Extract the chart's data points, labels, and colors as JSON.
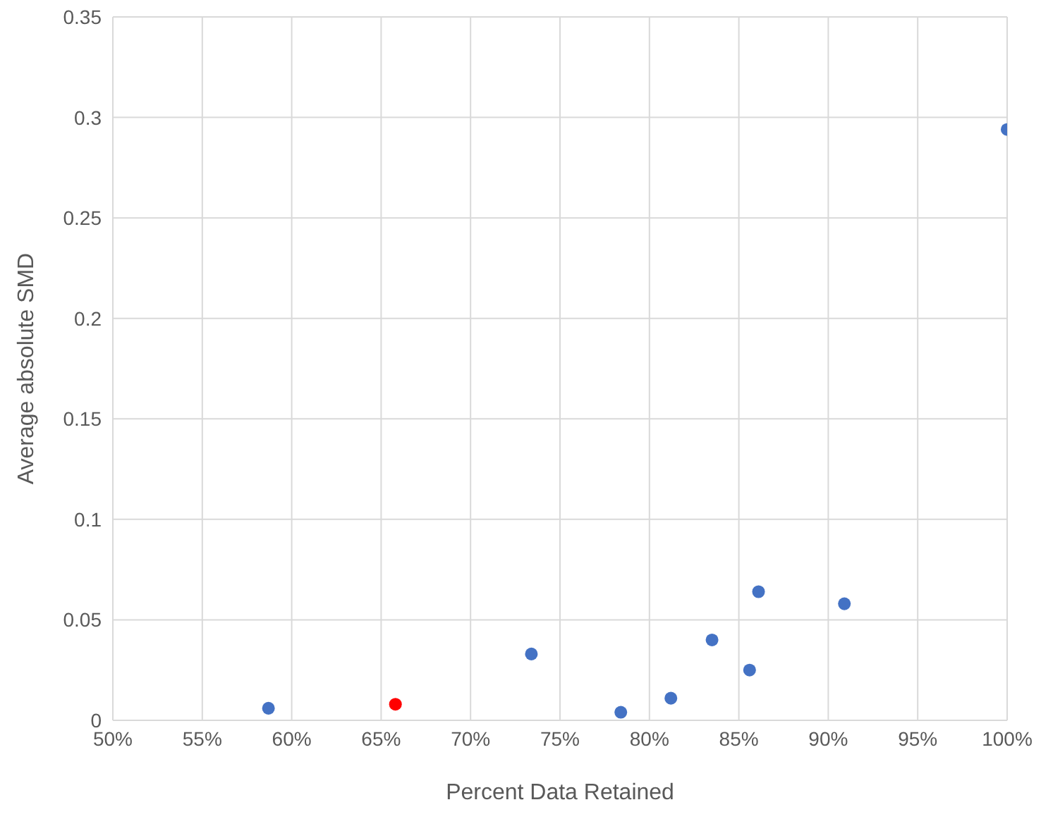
{
  "chart_data": {
    "type": "scatter",
    "xlabel": "Percent Data Retained",
    "ylabel": "Average absolute SMD",
    "series": [
      {
        "color": "#4472c4",
        "x": [
          58.7,
          73.4,
          78.4,
          81.2,
          83.5,
          85.6,
          86.1,
          90.9,
          100
        ],
        "values": [
          0.006,
          0.033,
          0.004,
          0.011,
          0.04,
          0.025,
          0.064,
          0.058,
          0.294
        ]
      },
      {
        "color": "#ff0000",
        "x": [
          65.8
        ],
        "values": [
          0.008
        ]
      }
    ],
    "xlim": [
      50,
      100
    ],
    "xticks": [
      {
        "value": 50,
        "label": "50%"
      },
      {
        "value": 55,
        "label": "55%"
      },
      {
        "value": 60,
        "label": "60%"
      },
      {
        "value": 65,
        "label": "65%"
      },
      {
        "value": 70,
        "label": "70%"
      },
      {
        "value": 75,
        "label": "75%"
      },
      {
        "value": 80,
        "label": "80%"
      },
      {
        "value": 85,
        "label": "85%"
      },
      {
        "value": 90,
        "label": "90%"
      },
      {
        "value": 95,
        "label": "95%"
      },
      {
        "value": 100,
        "label": "100%"
      }
    ],
    "ylim": [
      0,
      0.35
    ],
    "yticks": [
      0,
      0.05,
      0.1,
      0.15,
      0.2,
      0.25,
      0.3,
      0.35
    ],
    "grid": true,
    "marker": "circle"
  }
}
